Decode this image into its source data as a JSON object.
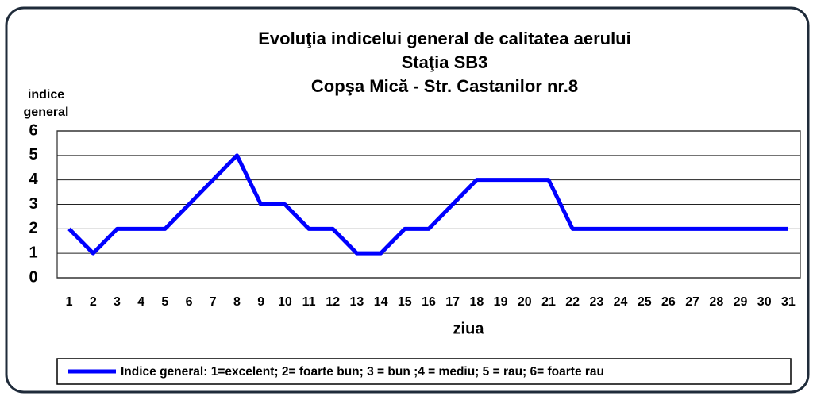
{
  "chart_data": {
    "type": "line",
    "title": [
      "Evoluţia  indicelui general de calitatea aerului",
      "Staţia SB3",
      "Copşa Mică - Str. Castanilor nr.8"
    ],
    "ylabel": [
      "indice",
      "general"
    ],
    "xlabel": "ziua",
    "categories": [
      "1",
      "2",
      "3",
      "4",
      "5",
      "6",
      "7",
      "8",
      "9",
      "10",
      "11",
      "12",
      "13",
      "14",
      "15",
      "16",
      "17",
      "18",
      "19",
      "20",
      "21",
      "22",
      "23",
      "24",
      "25",
      "26",
      "27",
      "28",
      "29",
      "30",
      "31"
    ],
    "series": [
      {
        "name": "Indice general: 1=excelent; 2= foarte bun; 3 = bun ;4 = mediu; 5 = rau; 6= foarte rau",
        "color": "#0000ff",
        "values": [
          2,
          1,
          2,
          2,
          2,
          3,
          4,
          5,
          3,
          3,
          2,
          2,
          1,
          1,
          2,
          2,
          3,
          4,
          4,
          4,
          4,
          2,
          2,
          2,
          2,
          2,
          2,
          2,
          2,
          2,
          2
        ]
      }
    ],
    "ylim": [
      0,
      6
    ],
    "yticks": [
      0,
      1,
      2,
      3,
      4,
      5,
      6
    ],
    "grid": true,
    "legend": "bottom"
  }
}
